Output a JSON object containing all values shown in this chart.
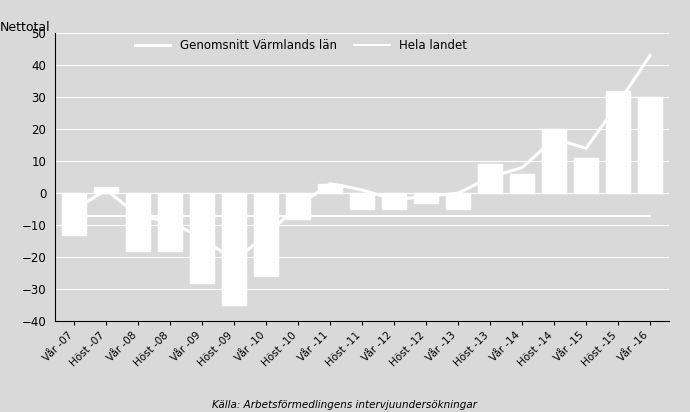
{
  "categories": [
    "Vår -07",
    "Höst -07",
    "Vår -08",
    "Höst -08",
    "Vår -09",
    "Höst -09",
    "Vår -10",
    "Höst -10",
    "Vår -11",
    "Höst -11",
    "Vår -12",
    "Höst -12",
    "Vår -13",
    "Höst -13",
    "Vår -14",
    "Höst -14",
    "Vår -15",
    "Höst -15",
    "Vår -16"
  ],
  "bar_values": [
    -13,
    2,
    -18,
    -18,
    -28,
    -35,
    -26,
    -8,
    3,
    -5,
    -5,
    -3,
    -5,
    9,
    6,
    20,
    11,
    32,
    30
  ],
  "line_varmland": [
    -5,
    1,
    -7,
    -9,
    -14,
    -21,
    -13,
    -4,
    3,
    1,
    -2,
    -1,
    0,
    5,
    8,
    17,
    14,
    28,
    43
  ],
  "line_hela_landet": [
    -7,
    -7,
    -7,
    -7,
    -7,
    -7,
    -7,
    -7,
    -7,
    -7,
    -7,
    -7,
    -7,
    -7,
    -7,
    -7,
    -7,
    -7,
    -7
  ],
  "ylabel": "Nettotal",
  "ylim": [
    -40,
    50
  ],
  "yticks": [
    -40,
    -30,
    -20,
    -10,
    0,
    10,
    20,
    30,
    40,
    50
  ],
  "legend_varmland": "Genomsnitt Värmlands län",
  "legend_hela": "Hela landet",
  "source_text": "Källa: Arbetsförmedlingens intervjuundersökningar",
  "background_color": "#d9d9d9",
  "plot_background_color": "#d9d9d9",
  "bar_color": "#ffffff",
  "line_color_varmland": "#ffffff",
  "line_color_hela": "#ffffff",
  "text_color": "#000000",
  "grid_color": "#ffffff",
  "spine_color": "#000000"
}
